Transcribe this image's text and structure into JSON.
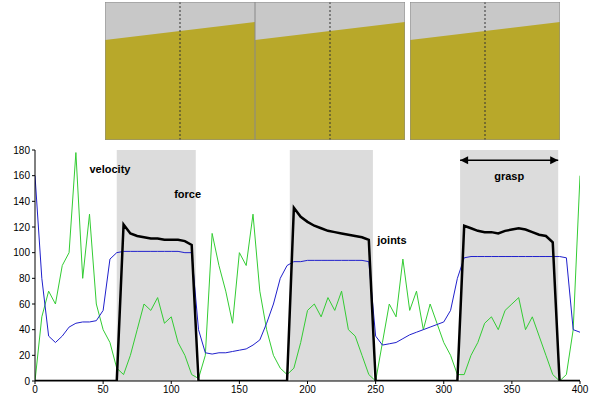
{
  "chart_data": {
    "type": "line",
    "x": [
      0,
      5,
      10,
      15,
      20,
      25,
      30,
      35,
      40,
      45,
      50,
      55,
      60,
      65,
      70,
      75,
      80,
      85,
      90,
      95,
      100,
      105,
      110,
      115,
      120,
      125,
      130,
      135,
      140,
      145,
      150,
      155,
      160,
      165,
      170,
      175,
      180,
      185,
      190,
      195,
      200,
      205,
      210,
      215,
      220,
      225,
      230,
      235,
      240,
      245,
      250,
      255,
      260,
      265,
      270,
      275,
      280,
      285,
      290,
      295,
      300,
      305,
      310,
      315,
      320,
      325,
      330,
      335,
      340,
      345,
      350,
      355,
      360,
      365,
      370,
      375,
      380,
      385,
      390,
      395,
      400
    ],
    "series": [
      {
        "name": "velocity",
        "color": "#33cc33",
        "line_style": "solid",
        "values": [
          0,
          50,
          70,
          60,
          90,
          100,
          178,
          80,
          130,
          60,
          40,
          30,
          10,
          5,
          20,
          40,
          60,
          55,
          65,
          45,
          50,
          30,
          20,
          5,
          2,
          20,
          115,
          90,
          70,
          45,
          100,
          90,
          130,
          70,
          40,
          20,
          10,
          5,
          10,
          30,
          55,
          60,
          50,
          65,
          55,
          70,
          40,
          35,
          20,
          5,
          0,
          30,
          60,
          50,
          95,
          55,
          70,
          40,
          60,
          45,
          30,
          20,
          5,
          5,
          20,
          30,
          45,
          50,
          40,
          55,
          60,
          65,
          40,
          50,
          35,
          20,
          5,
          0,
          5,
          40,
          160
        ]
      },
      {
        "name": "joints",
        "color": "#2020cc",
        "line_style": "solid",
        "values": [
          160,
          80,
          35,
          30,
          35,
          42,
          45,
          46,
          46,
          47,
          55,
          95,
          100,
          101,
          101,
          101,
          101,
          101,
          101,
          101,
          101,
          101,
          100,
          100,
          40,
          22,
          21,
          22,
          22,
          23,
          24,
          25,
          28,
          32,
          45,
          60,
          80,
          90,
          93,
          93,
          94,
          94,
          94,
          94,
          94,
          94,
          94,
          94,
          94,
          93,
          35,
          28,
          29,
          30,
          33,
          36,
          38,
          40,
          42,
          44,
          46,
          55,
          80,
          96,
          97,
          97,
          97,
          97,
          97,
          97,
          97,
          97,
          97,
          97,
          97,
          97,
          97,
          97,
          96,
          40,
          38
        ]
      },
      {
        "name": "force",
        "color": "#000000",
        "line_style": "thick",
        "values": [
          0,
          0,
          0,
          0,
          0,
          0,
          0,
          0,
          0,
          0,
          0,
          0,
          0,
          122,
          115,
          113,
          112,
          111,
          111,
          110,
          110,
          110,
          109,
          106,
          0,
          0,
          0,
          0,
          0,
          0,
          0,
          0,
          0,
          0,
          0,
          0,
          0,
          0,
          135,
          128,
          124,
          121,
          119,
          117,
          116,
          115,
          114,
          113,
          112,
          110,
          0,
          0,
          0,
          0,
          0,
          0,
          0,
          0,
          0,
          0,
          0,
          0,
          0,
          121,
          119,
          117,
          116,
          116,
          115,
          117,
          118,
          119,
          118,
          116,
          114,
          113,
          108,
          0,
          0,
          0,
          0
        ]
      }
    ],
    "shaded_regions": [
      [
        60,
        118
      ],
      [
        187,
        248
      ],
      [
        312,
        384
      ]
    ],
    "annotations": [
      {
        "text": "velocity",
        "x": 55,
        "y": 165
      },
      {
        "text": "force",
        "x": 112,
        "y": 146
      },
      {
        "text": "joints",
        "x": 262,
        "y": 110
      },
      {
        "text": "grasp",
        "x": 348,
        "y": 160,
        "arrow": [
          312,
          384
        ],
        "arrow_y": 172
      }
    ],
    "xlim": [
      0,
      400
    ],
    "xticks": [
      0,
      50,
      100,
      150,
      200,
      250,
      300,
      350,
      400
    ],
    "ylim": [
      0,
      180
    ],
    "yticks": [
      0,
      20,
      40,
      60,
      80,
      100,
      120,
      140,
      160,
      180
    ],
    "grid": false
  }
}
